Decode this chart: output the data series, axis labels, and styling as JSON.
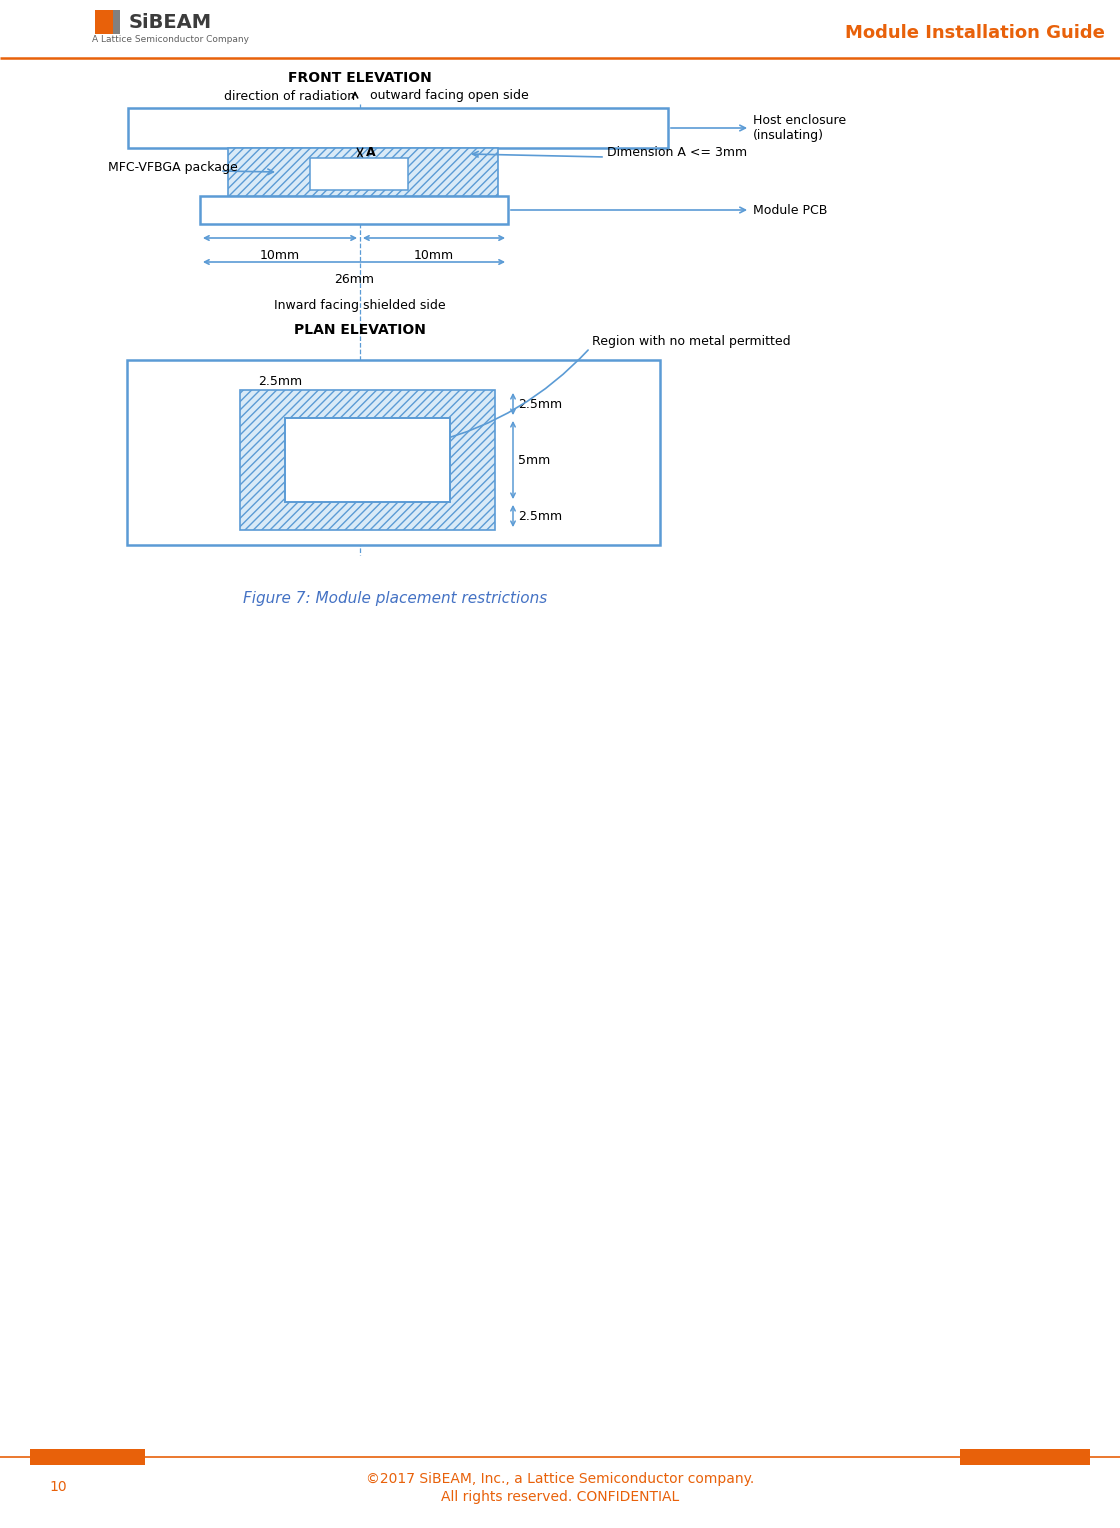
{
  "page_width": 11.2,
  "page_height": 15.28,
  "bg_color": "#ffffff",
  "orange_color": "#E8610A",
  "blue": "#5B9BD5",
  "title_text": "Module Installation Guide",
  "page_num": "10",
  "copyright": "©2017 SiBEAM, Inc., a Lattice Semiconductor company.",
  "all_rights": "All rights reserved. CONFIDENTIAL",
  "figure_caption": "Figure 7: Module placement restrictions",
  "front_elevation_label": "FRONT ELEVATION",
  "plan_elevation_label": "PLAN ELEVATION",
  "direction_radiation": "direction of radiation",
  "outward_facing": "outward facing open side",
  "mfc_package": "MFC-VFBGA package",
  "dim_a_label": "Dimension A <= 3mm",
  "host_enclosure": "Host enclosure\n(insulating)",
  "module_pcb": "Module PCB",
  "inward_shielded": "Inward facing shielded side",
  "region_no_metal": "Region with no metal permitted",
  "label_26mm": "26mm",
  "label_10mm_l": "10mm",
  "label_10mm_r": "10mm",
  "label_2_5mm_top": "2.5mm",
  "label_5mm": "5mm",
  "label_2_5mm_bot": "2.5mm",
  "label_2_5mm_left": "2.5mm",
  "label_A": "A"
}
